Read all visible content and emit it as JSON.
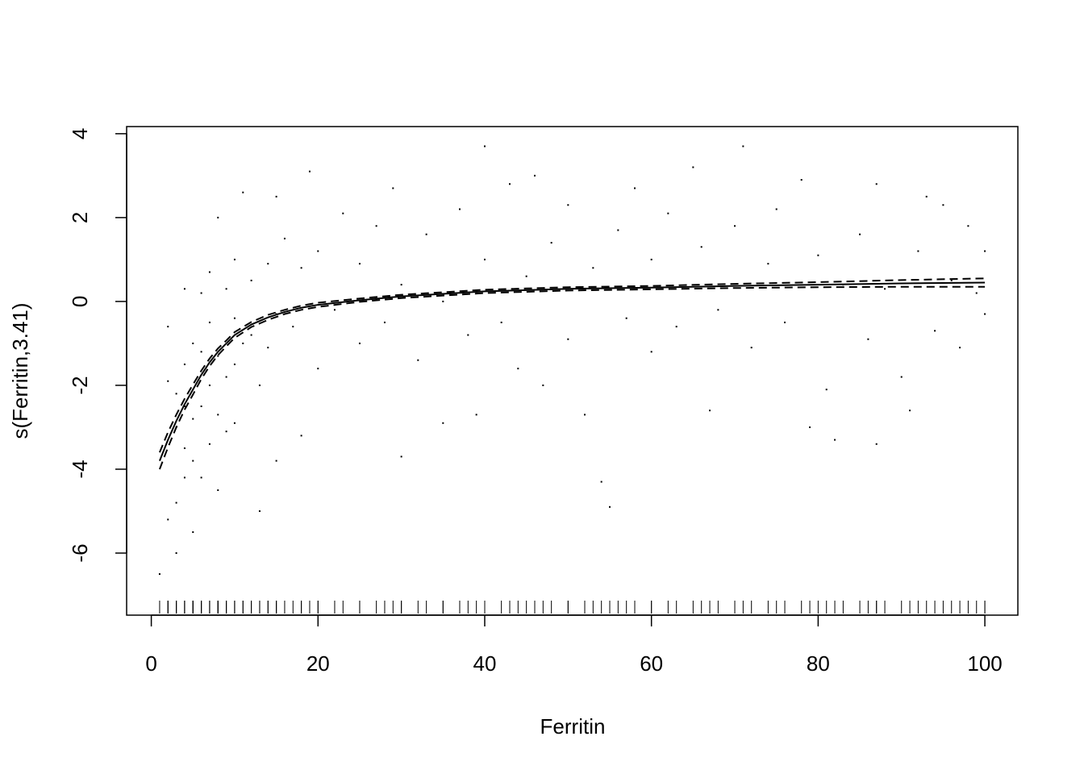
{
  "chart_data": {
    "type": "scatter",
    "xlabel": "Ferritin",
    "ylabel": "s(Ferritin,3.41)",
    "xlim": [
      -2.96,
      103.96
    ],
    "ylim": [
      -7.48,
      4.17
    ],
    "xticks": [
      0,
      20,
      40,
      60,
      80,
      100
    ],
    "yticks": [
      -6,
      -4,
      -2,
      0,
      2,
      4
    ],
    "color": "#000000",
    "x": [
      1,
      2,
      2,
      2,
      3,
      3,
      3,
      3,
      4,
      4,
      4,
      4,
      4,
      5,
      5,
      5,
      5,
      6,
      6,
      6,
      6,
      7,
      7,
      7,
      7,
      8,
      8,
      8,
      8,
      9,
      9,
      9,
      10,
      10,
      10,
      10,
      11,
      11,
      12,
      12,
      13,
      13,
      14,
      14,
      15,
      15,
      15,
      16,
      17,
      18,
      18,
      19,
      20,
      20,
      22,
      23,
      25,
      25,
      27,
      28,
      29,
      30,
      30,
      32,
      33,
      35,
      35,
      37,
      38,
      39,
      40,
      40,
      42,
      43,
      44,
      45,
      46,
      47,
      48,
      50,
      50,
      52,
      53,
      54,
      55,
      56,
      57,
      58,
      60,
      60,
      62,
      63,
      65,
      66,
      67,
      68,
      70,
      71,
      72,
      74,
      75,
      76,
      78,
      79,
      80,
      81,
      82,
      83,
      85,
      86,
      87,
      87,
      88,
      90,
      91,
      92,
      93,
      94,
      95,
      96,
      97,
      98,
      99,
      100,
      100
    ],
    "values": [
      -6.5,
      -5.2,
      -1.9,
      -0.6,
      -4.8,
      -3.0,
      -2.2,
      -6.0,
      -4.2,
      -3.5,
      -2.5,
      -1.5,
      0.3,
      -5.5,
      -3.8,
      -2.8,
      -1.0,
      -4.2,
      -2.5,
      -1.2,
      0.2,
      -3.4,
      -2.0,
      -0.5,
      0.7,
      -4.5,
      -2.7,
      -1.3,
      2.0,
      -3.1,
      -1.8,
      0.3,
      -2.9,
      -1.5,
      -0.4,
      1.0,
      2.6,
      -1.0,
      -0.8,
      0.5,
      -5.0,
      -2.0,
      -1.1,
      0.9,
      -3.8,
      2.5,
      -0.3,
      1.5,
      -0.6,
      -3.2,
      0.8,
      3.1,
      -1.6,
      1.2,
      -0.2,
      2.1,
      -1.0,
      0.9,
      1.8,
      -0.5,
      2.7,
      -3.7,
      0.4,
      -1.4,
      1.6,
      -2.9,
      0.0,
      2.2,
      -0.8,
      -2.7,
      3.7,
      1.0,
      -0.5,
      2.8,
      -1.6,
      0.6,
      3.0,
      -2.0,
      1.4,
      -0.9,
      2.3,
      -2.7,
      0.8,
      -4.3,
      -4.9,
      1.7,
      -0.4,
      2.7,
      -1.2,
      1.0,
      2.1,
      -0.6,
      3.2,
      1.3,
      -2.6,
      -0.2,
      1.8,
      3.7,
      -1.1,
      0.9,
      2.2,
      -0.5,
      2.9,
      -3.0,
      1.1,
      -2.1,
      -3.3,
      0.4,
      1.6,
      -0.9,
      -3.4,
      2.8,
      0.3,
      -1.8,
      -2.6,
      1.2,
      2.5,
      -0.7,
      2.3,
      0.5,
      -1.1,
      1.8,
      0.2,
      1.2,
      -0.3
    ],
    "fit": {
      "x": [
        1,
        2,
        3,
        4,
        5,
        6,
        7,
        8,
        9,
        10,
        12,
        14,
        16,
        18,
        20,
        25,
        30,
        35,
        40,
        45,
        50,
        60,
        70,
        80,
        90,
        100
      ],
      "values": [
        -3.8,
        -3.3,
        -2.85,
        -2.45,
        -2.1,
        -1.75,
        -1.45,
        -1.2,
        -1.0,
        -0.8,
        -0.55,
        -0.38,
        -0.25,
        -0.15,
        -0.08,
        0.03,
        0.12,
        0.18,
        0.24,
        0.27,
        0.3,
        0.33,
        0.37,
        0.4,
        0.43,
        0.45
      ],
      "upper": [
        -3.6,
        -3.12,
        -2.7,
        -2.32,
        -1.98,
        -1.65,
        -1.36,
        -1.12,
        -0.93,
        -0.73,
        -0.49,
        -0.32,
        -0.2,
        -0.1,
        -0.03,
        0.07,
        0.16,
        0.22,
        0.28,
        0.31,
        0.34,
        0.37,
        0.42,
        0.46,
        0.51,
        0.55
      ],
      "lower": [
        -4.0,
        -3.48,
        -3.0,
        -2.58,
        -2.22,
        -1.85,
        -1.54,
        -1.28,
        -1.07,
        -0.87,
        -0.61,
        -0.44,
        -0.3,
        -0.2,
        -0.13,
        -0.01,
        0.08,
        0.14,
        0.2,
        0.23,
        0.26,
        0.29,
        0.32,
        0.34,
        0.35,
        0.35
      ]
    }
  }
}
